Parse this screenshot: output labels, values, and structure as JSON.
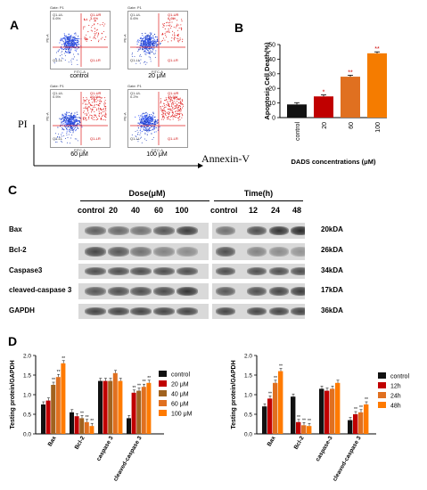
{
  "panels": {
    "a": "A",
    "b": "B",
    "c": "C",
    "d": "D"
  },
  "flow": {
    "gate": "Gate: P1",
    "quads": {
      "ul": "Q1-UL",
      "ur": "Q1-UR",
      "ll": "Q1-LL",
      "lr": "Q1-LR"
    },
    "x_axis": "FITC-A",
    "y_axis": "PE-A",
    "y_big": "PI",
    "x_big": "Annexin-V",
    "plots": [
      {
        "caption": "control",
        "ul": "0.6%",
        "ur": "3.4%",
        "ll": "",
        "lr": ""
      },
      {
        "caption": "20 μM",
        "ul": "0.6%",
        "ur": "6.6%",
        "ll": "",
        "lr": ""
      },
      {
        "caption": "60 μM",
        "ul": "0.5%",
        "ur": "19.0%",
        "ll": "",
        "lr": ""
      },
      {
        "caption": "100 μM",
        "ul": "0.2%",
        "ur": "24.5%",
        "ll": "",
        "lr": ""
      }
    ]
  },
  "western": {
    "dose_title": "Dose(μM)",
    "time_title": "Time(h)",
    "dose_lanes": [
      "control",
      "20",
      "40",
      "60",
      "100"
    ],
    "time_lanes": [
      "control",
      "12",
      "24",
      "48"
    ],
    "proteins": [
      {
        "name": "Bax",
        "kda": "20kDA"
      },
      {
        "name": "Bcl-2",
        "kda": "26kDA"
      },
      {
        "name": "Caspase3",
        "kda": "34kDA"
      },
      {
        "name": "cleaved-caspase 3",
        "kda": "17kDA"
      },
      {
        "name": "GAPDH",
        "kda": "36kDA"
      }
    ]
  },
  "chart_data": [
    {
      "type": "bar",
      "ylabel": "Apoptosis Cell Death(%)",
      "xlabel": "DADS concentrations (μM)",
      "ylim": [
        0,
        50
      ],
      "yticks": [
        0,
        10,
        20,
        30,
        40,
        50
      ],
      "categories": [
        "control",
        "20",
        "60",
        "100"
      ],
      "values": [
        9,
        14.5,
        28,
        44
      ],
      "errors": [
        1.2,
        1.0,
        1.0,
        1.0
      ],
      "sig": [
        "",
        "*",
        "**",
        "**"
      ],
      "colors": [
        "#111111",
        "#c00000",
        "#e07020",
        "#f57c00"
      ]
    },
    {
      "type": "bar",
      "ylabel": "Testing protein/GAPDH",
      "ylim": [
        0,
        2.0
      ],
      "yticks": [
        "0.0",
        "0.5",
        "1.0",
        "1.5",
        "2.0"
      ],
      "categories": [
        "Bax",
        "Bcl-2",
        "caspase 3",
        "cleaved-caspase 3"
      ],
      "legend": [
        "control",
        "20 μM",
        "40 μM",
        "60 μM",
        "100 μM"
      ],
      "colors": [
        "#111111",
        "#c00000",
        "#a0621f",
        "#e07020",
        "#ff7a00"
      ],
      "values": [
        [
          0.75,
          0.85,
          1.25,
          1.45,
          1.8
        ],
        [
          0.55,
          0.45,
          0.4,
          0.3,
          0.2
        ],
        [
          1.35,
          1.35,
          1.35,
          1.55,
          1.35
        ],
        [
          0.4,
          1.05,
          1.1,
          1.2,
          1.3
        ]
      ],
      "sig": [
        [
          "",
          "",
          "**",
          "**",
          "**"
        ],
        [
          "",
          "",
          "**",
          "**",
          "**"
        ],
        [
          "",
          "",
          "",
          "",
          ""
        ],
        [
          "",
          "**",
          "**",
          "**",
          "**"
        ]
      ]
    },
    {
      "type": "bar",
      "ylabel": "Testing protein/GAPDH",
      "ylim": [
        0,
        2.0
      ],
      "yticks": [
        "0.0",
        "0.5",
        "1.0",
        "1.5",
        "2.0"
      ],
      "categories": [
        "Bax",
        "Bcl-2",
        "caspase-3",
        "cleaved-caspase 3"
      ],
      "legend": [
        "control",
        "12h",
        "24h",
        "48h"
      ],
      "colors": [
        "#111111",
        "#c00000",
        "#e07020",
        "#ff7a00"
      ],
      "values": [
        [
          0.7,
          0.9,
          1.3,
          1.6
        ],
        [
          0.95,
          0.3,
          0.22,
          0.2
        ],
        [
          1.15,
          1.1,
          1.15,
          1.3
        ],
        [
          0.35,
          0.5,
          0.55,
          0.75
        ]
      ],
      "sig": [
        [
          "",
          "**",
          "**",
          "**"
        ],
        [
          "",
          "**",
          "**",
          "**"
        ],
        [
          "",
          "",
          "",
          ""
        ],
        [
          "",
          "**",
          "**",
          "**"
        ]
      ]
    }
  ]
}
